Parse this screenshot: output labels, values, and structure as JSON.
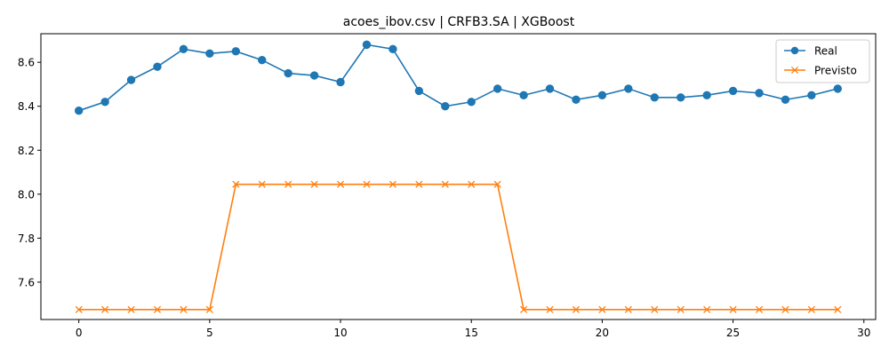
{
  "chart_data": {
    "type": "line",
    "title": "acoes_ibov.csv | CRFB3.SA | XGBoost",
    "xlabel": "",
    "ylabel": "",
    "x": [
      0,
      1,
      2,
      3,
      4,
      5,
      6,
      7,
      8,
      9,
      10,
      11,
      12,
      13,
      14,
      15,
      16,
      17,
      18,
      19,
      20,
      21,
      22,
      23,
      24,
      25,
      26,
      27,
      28,
      29
    ],
    "xlim": [
      -1.45,
      30.45
    ],
    "ylim": [
      7.43,
      8.73
    ],
    "xticks": [
      0,
      5,
      10,
      15,
      20,
      25,
      30
    ],
    "yticks": [
      7.6,
      7.8,
      8.0,
      8.2,
      8.4,
      8.6
    ],
    "grid": false,
    "legend_position": "top-right",
    "series": [
      {
        "name": "Real",
        "color": "#1f77b4",
        "marker": "circle",
        "values": [
          8.38,
          8.42,
          8.52,
          8.58,
          8.66,
          8.64,
          8.65,
          8.61,
          8.55,
          8.54,
          8.51,
          8.68,
          8.66,
          8.47,
          8.4,
          8.42,
          8.48,
          8.45,
          8.48,
          8.43,
          8.45,
          8.48,
          8.44,
          8.44,
          8.45,
          8.47,
          8.46,
          8.43,
          8.45,
          8.48
        ]
      },
      {
        "name": "Previsto",
        "color": "#ff7f0e",
        "marker": "x",
        "values": [
          7.475,
          7.475,
          7.475,
          7.475,
          7.475,
          7.475,
          8.045,
          8.045,
          8.045,
          8.045,
          8.045,
          8.045,
          8.045,
          8.045,
          8.045,
          8.045,
          8.045,
          7.475,
          7.475,
          7.475,
          7.475,
          7.475,
          7.475,
          7.475,
          7.475,
          7.475,
          7.475,
          7.475,
          7.475,
          7.475
        ]
      }
    ]
  }
}
